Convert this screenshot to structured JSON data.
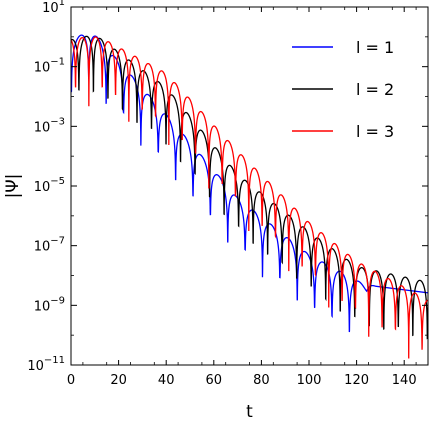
{
  "chart_data": {
    "type": "line",
    "xlabel": "t",
    "ylabel": "|Ψ|",
    "xlim": [
      0,
      150
    ],
    "ylim": [
      1e-11,
      10
    ],
    "yscale": "log",
    "grid": false,
    "legend_position": "top-right",
    "x_ticks": [
      "0",
      "20",
      "40",
      "60",
      "80",
      "100",
      "120",
      "140"
    ],
    "y_ticks": [
      {
        "base": "10",
        "exp": "1"
      },
      {
        "base": "10",
        "exp": "−1"
      },
      {
        "base": "10",
        "exp": "−3"
      },
      {
        "base": "10",
        "exp": "−5"
      },
      {
        "base": "10",
        "exp": "−7"
      },
      {
        "base": "10",
        "exp": "−9"
      },
      {
        "base": "10",
        "exp": "−11"
      }
    ],
    "series": [
      {
        "name": "l = 1",
        "color": "#0000ff",
        "envelope": {
          "x": [
            0,
            8,
            40,
            70,
            100,
            120,
            150
          ],
          "y": [
            0.7,
            1.8,
            0.0025,
            4e-06,
            5e-08,
            7e-09,
            3.5e-09
          ]
        },
        "oscillation_period": 7.3,
        "phase": 1.5,
        "minima_depth": [
          0.01,
          0.03
        ],
        "smooth_after": 118
      },
      {
        "name": "l = 2",
        "color": "#000000",
        "envelope": {
          "x": [
            0,
            10,
            40,
            70,
            100,
            120,
            150
          ],
          "y": [
            0.8,
            1.2,
            0.02,
            2.5e-05,
            3e-07,
            2e-08,
            6e-09
          ]
        },
        "oscillation_period": 6.1,
        "phase": 3.0,
        "minima_depth": [
          0.005,
          0.02
        ],
        "smooth_after": null
      },
      {
        "name": "l = 3",
        "color": "#ff0000",
        "envelope": {
          "x": [
            0,
            12,
            40,
            70,
            100,
            120,
            150
          ],
          "y": [
            0.9,
            1.0,
            0.06,
            0.00015,
            6e-07,
            3e-08,
            1.5e-09
          ]
        },
        "oscillation_period": 5.6,
        "phase": 0.5,
        "minima_depth": [
          0.003,
          0.03
        ],
        "smooth_after": null
      }
    ]
  }
}
